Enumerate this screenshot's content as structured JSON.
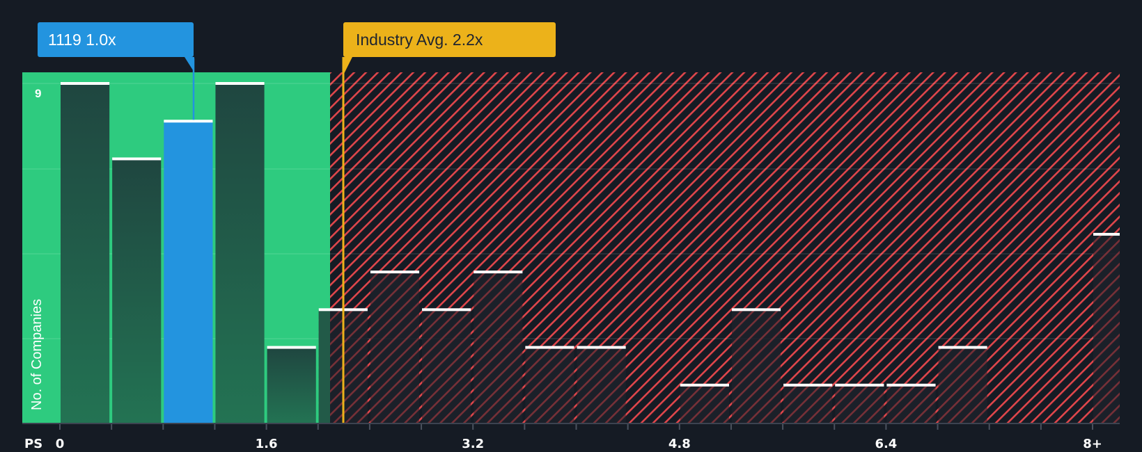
{
  "callouts": {
    "company": "1119 1.0x",
    "industry": "Industry Avg. 2.2x"
  },
  "axes": {
    "y_label": "No. of Companies",
    "y_tick_top": "9",
    "x_prefix": "PS",
    "x_ticks": [
      {
        "label": "0",
        "bin": 0
      },
      {
        "label": "1.6",
        "bin": 4
      },
      {
        "label": "3.2",
        "bin": 8
      },
      {
        "label": "4.8",
        "bin": 12
      },
      {
        "label": "6.4",
        "bin": 16
      },
      {
        "label": "8+",
        "bin": 20
      }
    ]
  },
  "colors": {
    "background": "#151b24",
    "fair_zone": "#2ecb7f",
    "overvalued_hatch": "#e0464b",
    "company_bar": "#2394df",
    "industry_line": "#ecb21a",
    "bar_in_green": "#20463f",
    "bar_in_red": "#1c202a"
  },
  "chart_data": {
    "type": "bar",
    "title": "",
    "xlabel": "PS",
    "ylabel": "No. of Companies",
    "bin_width": 0.4,
    "categories": [
      "0-0.4",
      "0.4-0.8",
      "0.8-1.2",
      "1.2-1.6",
      "1.6-2.0",
      "2.0-2.4",
      "2.4-2.8",
      "2.8-3.2",
      "3.2-3.6",
      "3.6-4.0",
      "4.0-4.4",
      "4.4-4.8",
      "4.8-5.2",
      "5.2-5.6",
      "5.6-6.0",
      "6.0-6.4",
      "6.4-6.8",
      "6.8-7.2",
      "7.2-7.6",
      "7.6-8.0",
      "8+"
    ],
    "values": [
      9,
      7,
      8,
      9,
      2,
      3,
      4,
      3,
      4,
      2,
      2,
      0,
      1,
      3,
      1,
      1,
      1,
      2,
      0,
      0,
      5
    ],
    "highlight_bin": 2,
    "company": {
      "name": "1119",
      "value": 1.0
    },
    "industry_avg": 2.2,
    "fair_zone_max": 1.84,
    "ylim": [
      0,
      9
    ],
    "x_tick_labels": [
      "0",
      "1.6",
      "3.2",
      "4.8",
      "6.4",
      "8+"
    ],
    "grid": true
  }
}
